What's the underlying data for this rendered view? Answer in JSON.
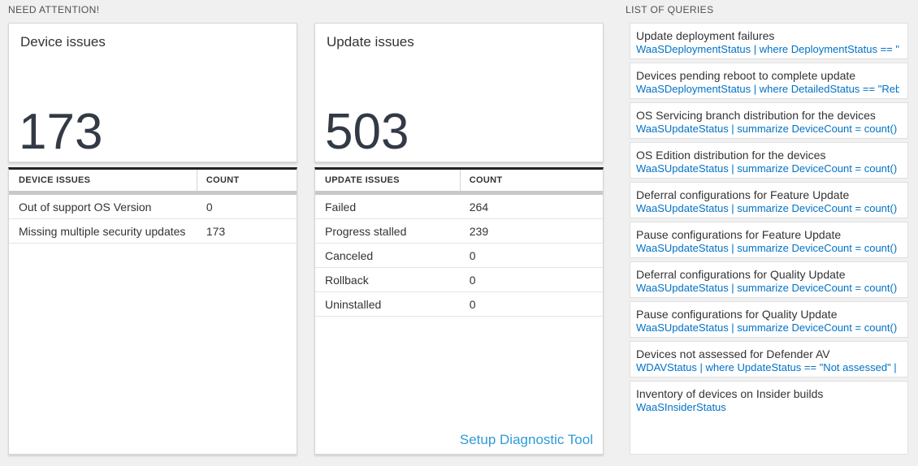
{
  "need_attention": {
    "label": "NEED ATTENTION!"
  },
  "list_of_queries": {
    "label": "LIST OF QUERIES"
  },
  "device_issues": {
    "title": "Device issues",
    "count": "173",
    "table": {
      "name_header": "DEVICE ISSUES",
      "count_header": "COUNT",
      "rows": [
        {
          "name": "Out of support OS Version",
          "count": "0"
        },
        {
          "name": "Missing multiple security updates",
          "count": "173"
        }
      ]
    }
  },
  "update_issues": {
    "title": "Update issues",
    "count": "503",
    "table": {
      "name_header": "UPDATE ISSUES",
      "count_header": "COUNT",
      "rows": [
        {
          "name": "Failed",
          "count": "264"
        },
        {
          "name": "Progress stalled",
          "count": "239"
        },
        {
          "name": "Canceled",
          "count": "0"
        },
        {
          "name": "Rollback",
          "count": "0"
        },
        {
          "name": "Uninstalled",
          "count": "0"
        }
      ]
    },
    "diagnostic_link": "Setup Diagnostic Tool"
  },
  "queries": [
    {
      "title": "Update deployment failures",
      "query": "WaaSDeploymentStatus | where DeploymentStatus == \"Failed\" |..."
    },
    {
      "title": "Devices pending reboot to complete update",
      "query": "WaaSDeploymentStatus | where DetailedStatus == \"Reboot pend..."
    },
    {
      "title": "OS Servicing branch distribution for the devices",
      "query": "WaaSUpdateStatus | summarize DeviceCount = count() by OSSer..."
    },
    {
      "title": "OS Edition distribution for the devices",
      "query": "WaaSUpdateStatus | summarize DeviceCount = count() by OSEdit..."
    },
    {
      "title": "Deferral configurations for Feature Update",
      "query": "WaaSUpdateStatus | summarize DeviceCount = count() by Featur..."
    },
    {
      "title": "Pause configurations for Feature Update",
      "query": "WaaSUpdateStatus | summarize DeviceCount = count() by Featur..."
    },
    {
      "title": "Deferral configurations for Quality Update",
      "query": "WaaSUpdateStatus | summarize DeviceCount = count() by Qualit..."
    },
    {
      "title": "Pause configurations for Quality Update",
      "query": "WaaSUpdateStatus | summarize DeviceCount = count() by Qualit..."
    },
    {
      "title": "Devices not assessed for Defender AV",
      "query": "WDAVStatus | where UpdateStatus == \"Not assessed\" | render ta..."
    },
    {
      "title": "Inventory of devices on Insider builds",
      "query": "WaaSInsiderStatus"
    }
  ],
  "colors": {
    "page_bg": "#f0f0f0",
    "query_blue": "#0072c6",
    "link_blue": "#2e9bd8",
    "big_number": "#323a45",
    "header_dark_border": "#222222"
  }
}
